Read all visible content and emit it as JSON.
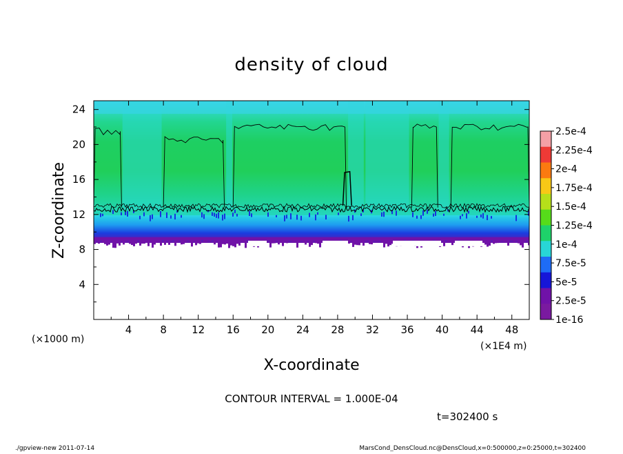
{
  "chart_data": {
    "type": "heatmap",
    "title": "density of cloud",
    "xlabel": "X-coordinate",
    "ylabel": "Z-coordinate",
    "x_unit": "(×1E4 m)",
    "y_unit": "(×1000 m)",
    "xlim": [
      0,
      50
    ],
    "ylim": [
      0,
      25
    ],
    "x_ticks": [
      "4",
      "8",
      "12",
      "16",
      "20",
      "24",
      "28",
      "32",
      "36",
      "40",
      "44",
      "48"
    ],
    "x_tick_values": [
      4,
      8,
      12,
      16,
      20,
      24,
      28,
      32,
      36,
      40,
      44,
      48
    ],
    "y_ticks": [
      "4",
      "8",
      "12",
      "16",
      "20",
      "24"
    ],
    "y_tick_values": [
      4,
      8,
      12,
      16,
      20,
      24
    ],
    "contour_interval_text": "CONTOUR INTERVAL = 1.000E-04",
    "time_text": "t=302400 s",
    "colorbar": {
      "labels": [
        "2.5e-4",
        "2.25e-4",
        "2e-4",
        "1.75e-4",
        "1.5e-4",
        "1.25e-4",
        "1e-4",
        "7.5e-5",
        "5e-5",
        "2.5e-5",
        "1e-16"
      ],
      "colors": [
        "#f4a0a6",
        "#ee3a36",
        "#fb7a10",
        "#f8c816",
        "#b6e01a",
        "#56dc1a",
        "#1ed26a",
        "#28d6d6",
        "#1e6cf6",
        "#1616d8",
        "#7012a8",
        "#7a1aa0"
      ]
    },
    "field": {
      "cloud_base": 8.8,
      "purple_layer_top": 10.5,
      "blue_layer_top": 12.5,
      "main_level": 12.5,
      "cloud_top": 24.9,
      "regions": [
        {
          "x_range": [
            0,
            3.2
          ],
          "value": "1e-4 to 1.25e-4",
          "contour_top": 21.5
        },
        {
          "x_range": [
            8.0,
            15.0
          ],
          "value": "1e-4 to 1.25e-4",
          "contour_top": 20.5
        },
        {
          "x_range": [
            16.0,
            29.0
          ],
          "value": "1e-4 to 1.25e-4",
          "contour_top": 22.0
        },
        {
          "x_range": [
            36.5,
            39.5
          ],
          "value": "1e-4 to 1.25e-4",
          "contour_top": 22.0
        },
        {
          "x_range": [
            41.0,
            50.0
          ],
          "value": "1e-4 to 1.25e-4",
          "contour_top": 22.0
        }
      ]
    }
  },
  "footer": {
    "left": "./gpview-new   2011-07-14",
    "right": "MarsCond_DensCloud.nc@DensCloud,x=0:500000,z=0:25000,t=302400"
  }
}
